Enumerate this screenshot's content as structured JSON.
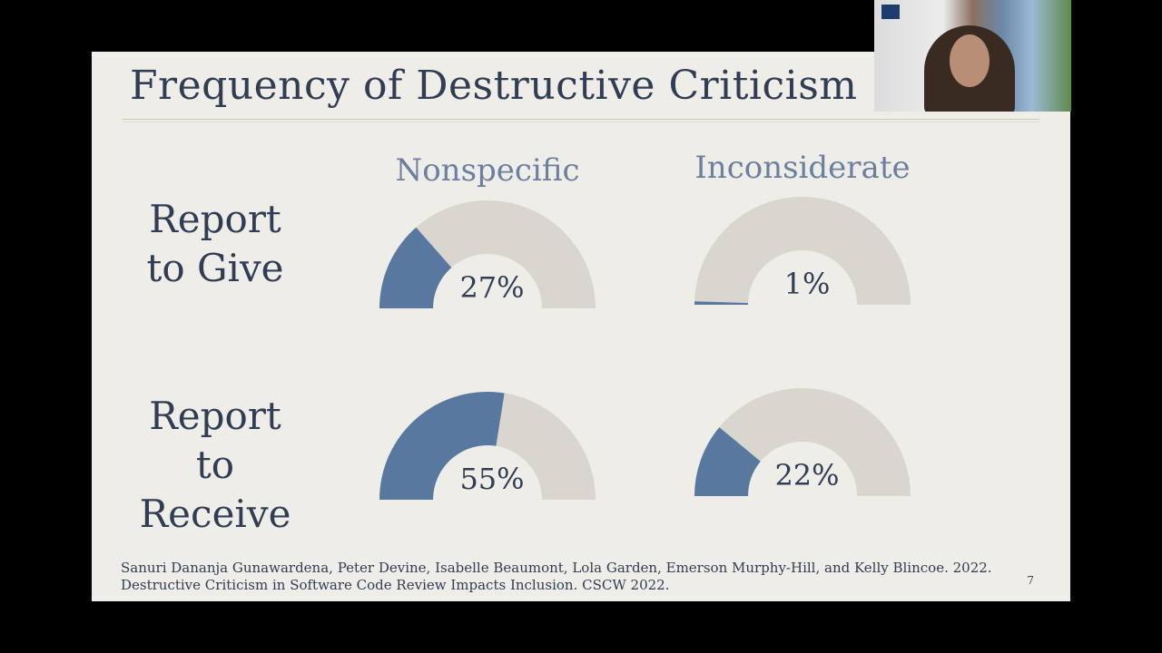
{
  "slide": {
    "title": "Frequency of Destructive Criticism",
    "citation": "Sanuri Dananja Gunawardena, Peter Devine, Isabelle Beaumont, Lola Garden, Emerson Murphy-Hill, and Kelly Blincoe. 2022. Destructive Criticism in Software Code Review Impacts Inclusion. CSCW 2022.",
    "page_number": "7"
  },
  "chart_data": {
    "type": "gauge",
    "columns": [
      "Nonspecific",
      "Inconsiderate"
    ],
    "rows": [
      "Report to Give",
      "Report to Receive"
    ],
    "values": [
      [
        27,
        1
      ],
      [
        55,
        22
      ]
    ],
    "labels": [
      [
        "27%",
        "1%"
      ],
      [
        "55%",
        "22%"
      ]
    ],
    "range": [
      0,
      100
    ],
    "colors": {
      "fill": "#5878a0",
      "track": "#d9d5cf"
    }
  },
  "webcam": {
    "logo_icon": "university-logo-icon"
  }
}
